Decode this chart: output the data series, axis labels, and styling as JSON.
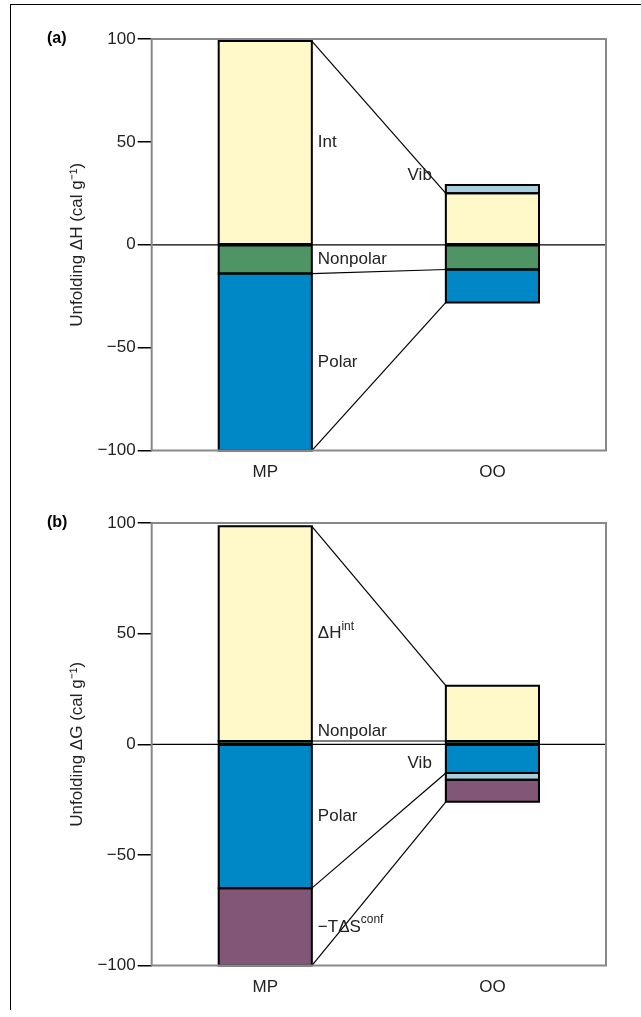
{
  "chart_data": [
    {
      "type": "bar",
      "title": "(a)",
      "ylabel": "Unfolding ΔH (cal g⁻¹)",
      "categories": [
        "MP",
        "OO"
      ],
      "stacked": true,
      "ylim": [
        -100,
        100
      ],
      "yticks": [
        -100,
        -50,
        0,
        50,
        100
      ],
      "grid": false,
      "legend": false,
      "ref_lines": [
        {
          "axis": "y",
          "value": 0,
          "color": "#000000"
        }
      ],
      "series": [
        {
          "name": "Int",
          "color": "#fff9c9",
          "values": [
            99,
            25
          ]
        },
        {
          "name": "Vib",
          "color": "#a7cfe0",
          "values": [
            null,
            4
          ]
        },
        {
          "name": "Nonpolar",
          "color": "#4f9465",
          "values": [
            -14,
            -12
          ]
        },
        {
          "name": "Polar",
          "color": "#0087c6",
          "values": [
            -86,
            -16
          ]
        }
      ]
    },
    {
      "type": "bar",
      "title": "(b)",
      "ylabel": "Unfolding ΔG (cal g⁻¹)",
      "categories": [
        "MP",
        "OO"
      ],
      "stacked": true,
      "ylim": [
        -100,
        100
      ],
      "yticks": [
        -100,
        -50,
        0,
        50,
        100
      ],
      "grid": false,
      "legend": false,
      "ref_lines": [
        {
          "axis": "y",
          "value": 0,
          "color": "#000000"
        }
      ],
      "series": [
        {
          "name": "Nonpolar",
          "color": "#4f9465",
          "values": [
            1.5,
            1.5
          ]
        },
        {
          "name": "ΔH$^{int}$",
          "color": "#fff9c9",
          "values": [
            97,
            25
          ]
        },
        {
          "name": "Polar",
          "color": "#0087c6",
          "values": [
            -65,
            -13
          ]
        },
        {
          "name": "Vib",
          "color": "#a7cfe0",
          "values": [
            null,
            -3
          ]
        },
        {
          "name": "−TΔS$^{conf}$",
          "color": "#825676",
          "values": [
            -35,
            -10
          ]
        }
      ]
    }
  ]
}
